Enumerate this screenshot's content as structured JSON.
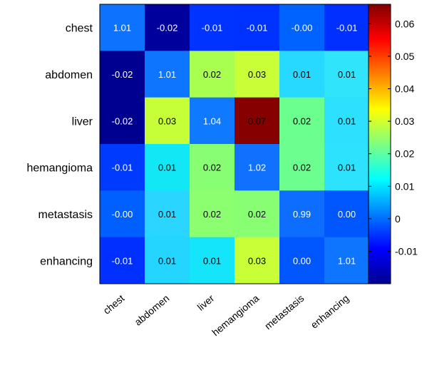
{
  "chart_data": {
    "type": "heatmap",
    "title": "",
    "xlabel": "",
    "ylabel": "",
    "row_labels": [
      "chest",
      "abdomen",
      "liver",
      "hemangioma",
      "metastasis",
      "enhancing"
    ],
    "col_labels": [
      "chest",
      "abdomen",
      "liver",
      "hemangioma",
      "metastasis",
      "enhancing"
    ],
    "values": [
      [
        1.01,
        -0.02,
        -0.01,
        -0.01,
        0.0,
        -0.01
      ],
      [
        -0.02,
        1.01,
        0.02,
        0.03,
        0.01,
        0.01
      ],
      [
        -0.02,
        0.03,
        1.04,
        0.07,
        0.02,
        0.01
      ],
      [
        -0.01,
        0.01,
        0.02,
        1.02,
        0.02,
        0.01
      ],
      [
        0.0,
        0.01,
        0.02,
        0.02,
        0.99,
        0.0
      ],
      [
        -0.01,
        0.01,
        0.01,
        0.03,
        0.0,
        1.01
      ]
    ],
    "cell_labels": [
      [
        "1.01",
        "-0.02",
        "-0.01",
        "-0.01",
        "-0.00",
        "-0.01"
      ],
      [
        "-0.02",
        "1.01",
        "0.02",
        "0.03",
        "0.01",
        "0.01"
      ],
      [
        "-0.02",
        "0.03",
        "1.04",
        "0.07",
        "0.02",
        "0.01"
      ],
      [
        "-0.01",
        "0.01",
        "0.02",
        "1.02",
        "0.02",
        "0.01"
      ],
      [
        "-0.00",
        "0.01",
        "0.02",
        "0.02",
        "0.99",
        "0.00"
      ],
      [
        "-0.01",
        "0.01",
        "0.01",
        "0.03",
        "0.00",
        "1.01"
      ]
    ],
    "cell_colors": [
      [
        "#0d73ff",
        "#00009c",
        "#0033ff",
        "#0032ff",
        "#0062ff",
        "#0030ff"
      ],
      [
        "#000090",
        "#0d75ff",
        "#a8ff50",
        "#c8ff37",
        "#28d9ff",
        "#2fe4fb"
      ],
      [
        "#000090",
        "#c6ff38",
        "#0f79ff",
        "#860000",
        "#6bff8e",
        "#2de0fd"
      ],
      [
        "#003aff",
        "#12e8f5",
        "#88ff72",
        "#1071ff",
        "#6cff8f",
        "#2de2fd"
      ],
      [
        "#0060ff",
        "#2ad6ff",
        "#8cff70",
        "#88ff73",
        "#0d6dff",
        "#0056ff"
      ],
      [
        "#0030ff",
        "#24d6ff",
        "#14e5fa",
        "#c8ff37",
        "#0056ff",
        "#0d75ff"
      ]
    ],
    "colormap": "jet",
    "colorbar": {
      "min": -0.02,
      "max": 0.066,
      "ticks": [
        -0.01,
        0,
        0.01,
        0.02,
        0.03,
        0.04,
        0.05,
        0.06
      ],
      "tick_labels": [
        "-0.01",
        "0",
        "0.01",
        "0.02",
        "0.03",
        "0.04",
        "0.05",
        "0.06"
      ]
    },
    "grid": false,
    "colorbar_position": "right"
  }
}
